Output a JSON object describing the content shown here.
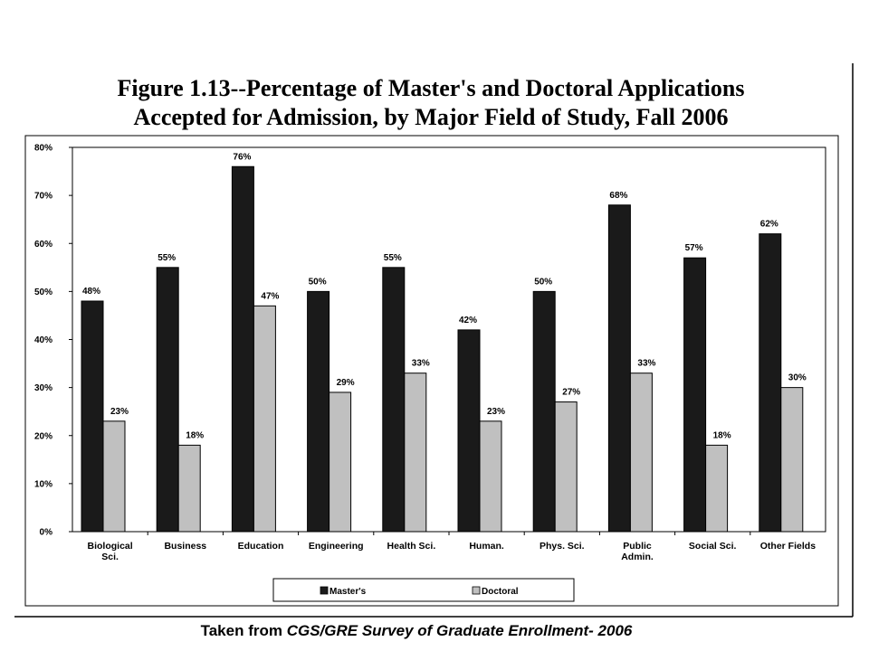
{
  "chart_data": {
    "type": "bar",
    "title_line1": "Figure 1.13--Percentage of Master's and Doctoral Applications",
    "title_line2": "Accepted for Admission, by Major Field of Study, Fall 2006",
    "categories": [
      [
        "Biological",
        "Sci."
      ],
      [
        "Business"
      ],
      [
        "Education"
      ],
      [
        "Engineering"
      ],
      [
        "Health Sci."
      ],
      [
        "Human."
      ],
      [
        "Phys. Sci."
      ],
      [
        "Public",
        "Admin."
      ],
      [
        "Social Sci."
      ],
      [
        "Other Fields"
      ]
    ],
    "series": [
      {
        "name": "Master's",
        "values": [
          48,
          55,
          76,
          50,
          55,
          42,
          50,
          68,
          57,
          62
        ],
        "color": "#1a1a1a"
      },
      {
        "name": "Doctoral",
        "values": [
          23,
          18,
          47,
          29,
          33,
          23,
          27,
          33,
          18,
          30
        ],
        "color": "#c0c0c0"
      }
    ],
    "value_suffix": "%",
    "ylim": [
      0,
      80
    ],
    "yticks": [
      "0%",
      "10%",
      "20%",
      "30%",
      "40%",
      "50%",
      "60%",
      "70%",
      "80%"
    ],
    "legend_position": "bottom",
    "grid": false
  },
  "caption": {
    "prefix": "Taken from ",
    "source": "CGS/GRE Survey of Graduate Enrollment- 2006"
  }
}
